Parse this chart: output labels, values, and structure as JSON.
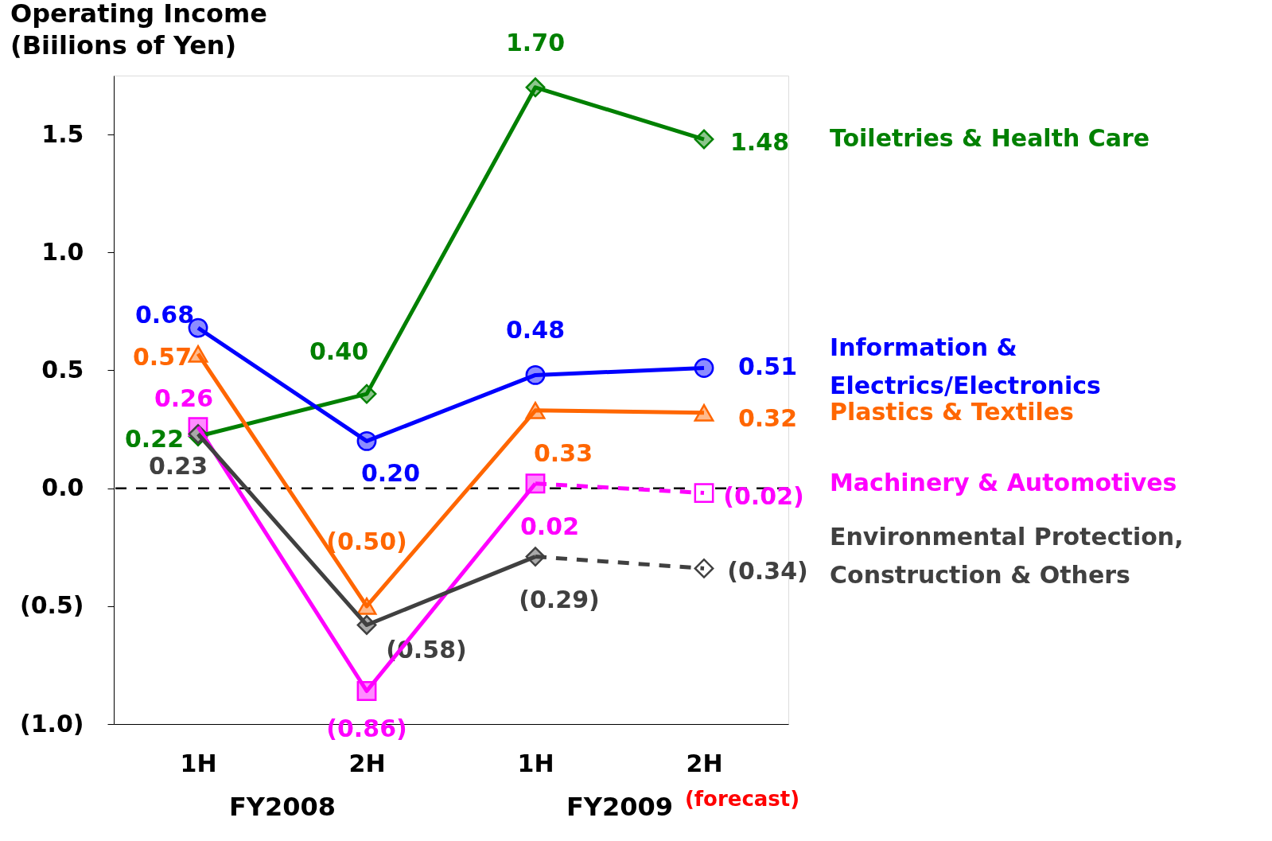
{
  "chart_data": {
    "type": "line",
    "ylabel": "Operating Income\n(Biilions of Yen)",
    "categories": [
      "1H",
      "2H",
      "1H",
      "2H"
    ],
    "ylim": [
      -1.0,
      1.75
    ],
    "yticks": [
      {
        "value": -1.0,
        "label": "(1.0)"
      },
      {
        "value": -0.5,
        "label": "(0.5)"
      },
      {
        "value": 0,
        "label": "0.0"
      },
      {
        "value": 0.5,
        "label": "0.5"
      },
      {
        "value": 1.0,
        "label": "1.0"
      },
      {
        "value": 1.5,
        "label": "1.5"
      }
    ],
    "grid": false,
    "legend": false,
    "ref_lines": [
      {
        "axis": "y",
        "value": 0,
        "color": "#000000",
        "line_style": "dashed"
      }
    ],
    "annotations": [
      "FY2008",
      "FY2009",
      "(forecast)"
    ],
    "series": [
      {
        "name": "Toiletries & Health Care",
        "color": "#008000",
        "marker": "diamond",
        "values": [
          0.22,
          0.4,
          1.7,
          1.48
        ],
        "value_labels": [
          "0.22",
          "0.40",
          "1.70",
          "1.48"
        ]
      },
      {
        "name": "Information &\nElectrics/Electronics",
        "color": "#0000ff",
        "marker": "circle",
        "values": [
          0.68,
          0.2,
          0.48,
          0.51
        ],
        "value_labels": [
          "0.68",
          "0.20",
          "0.48",
          "0.51"
        ]
      },
      {
        "name": "Plastics & Textiles",
        "color": "#ff6600",
        "marker": "triangle",
        "values": [
          0.57,
          -0.5,
          0.33,
          0.32
        ],
        "value_labels": [
          "0.57",
          "(0.50)",
          "0.33",
          "0.32"
        ]
      },
      {
        "name": "Machinery & Automotives",
        "color": "#ff00ff",
        "marker": "square",
        "values": [
          0.26,
          -0.86,
          0.02,
          null
        ],
        "value_labels": [
          "0.26",
          "(0.86)",
          "0.02",
          null
        ]
      },
      {
        "color": "#ff00ff",
        "marker": "square",
        "line_style": "dashed",
        "values": [
          null,
          null,
          0.02,
          -0.02
        ],
        "value_labels": [
          null,
          null,
          null,
          "(0.02)"
        ]
      },
      {
        "name": "Environmental Protection,\nConstruction & Others",
        "color": "#404040",
        "marker": "diamond",
        "values": [
          0.23,
          -0.58,
          -0.29,
          null
        ],
        "value_labels": [
          "0.23",
          "(0.58)",
          "(0.29)",
          null
        ]
      },
      {
        "color": "#404040",
        "marker": "diamond",
        "line_style": "dashed",
        "values": [
          null,
          null,
          -0.29,
          -0.34
        ],
        "value_labels": [
          null,
          null,
          null,
          "(0.34)"
        ]
      }
    ]
  }
}
